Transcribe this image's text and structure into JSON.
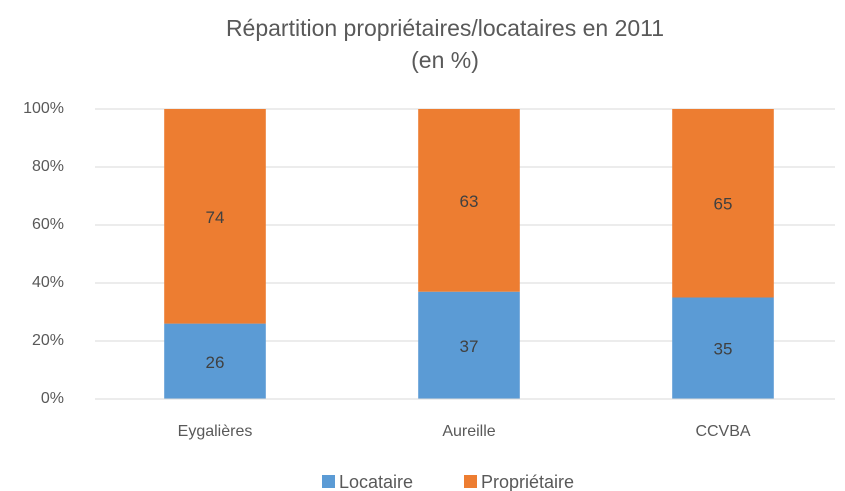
{
  "chart_data": {
    "type": "stacked_bar",
    "title": [
      "Répartition propriétaires/locataires en 2011",
      "(en %)"
    ],
    "categories": [
      "Eygalières",
      "Aureille",
      "CCVBA"
    ],
    "series": [
      {
        "name": "Locataire",
        "color": "#5b9bd5",
        "values": [
          26,
          37,
          35
        ]
      },
      {
        "name": "Propriétaire",
        "color": "#ed7d31",
        "values": [
          74,
          63,
          65
        ]
      }
    ],
    "ylim": [
      0,
      100
    ],
    "yticks": [
      {
        "value": 0,
        "label": "0%"
      },
      {
        "value": 20,
        "label": "20%"
      },
      {
        "value": 40,
        "label": "40%"
      },
      {
        "value": 60,
        "label": "60%"
      },
      {
        "value": 80,
        "label": "80%"
      },
      {
        "value": 100,
        "label": "100%"
      }
    ],
    "grid": true,
    "legend": "bottom"
  }
}
